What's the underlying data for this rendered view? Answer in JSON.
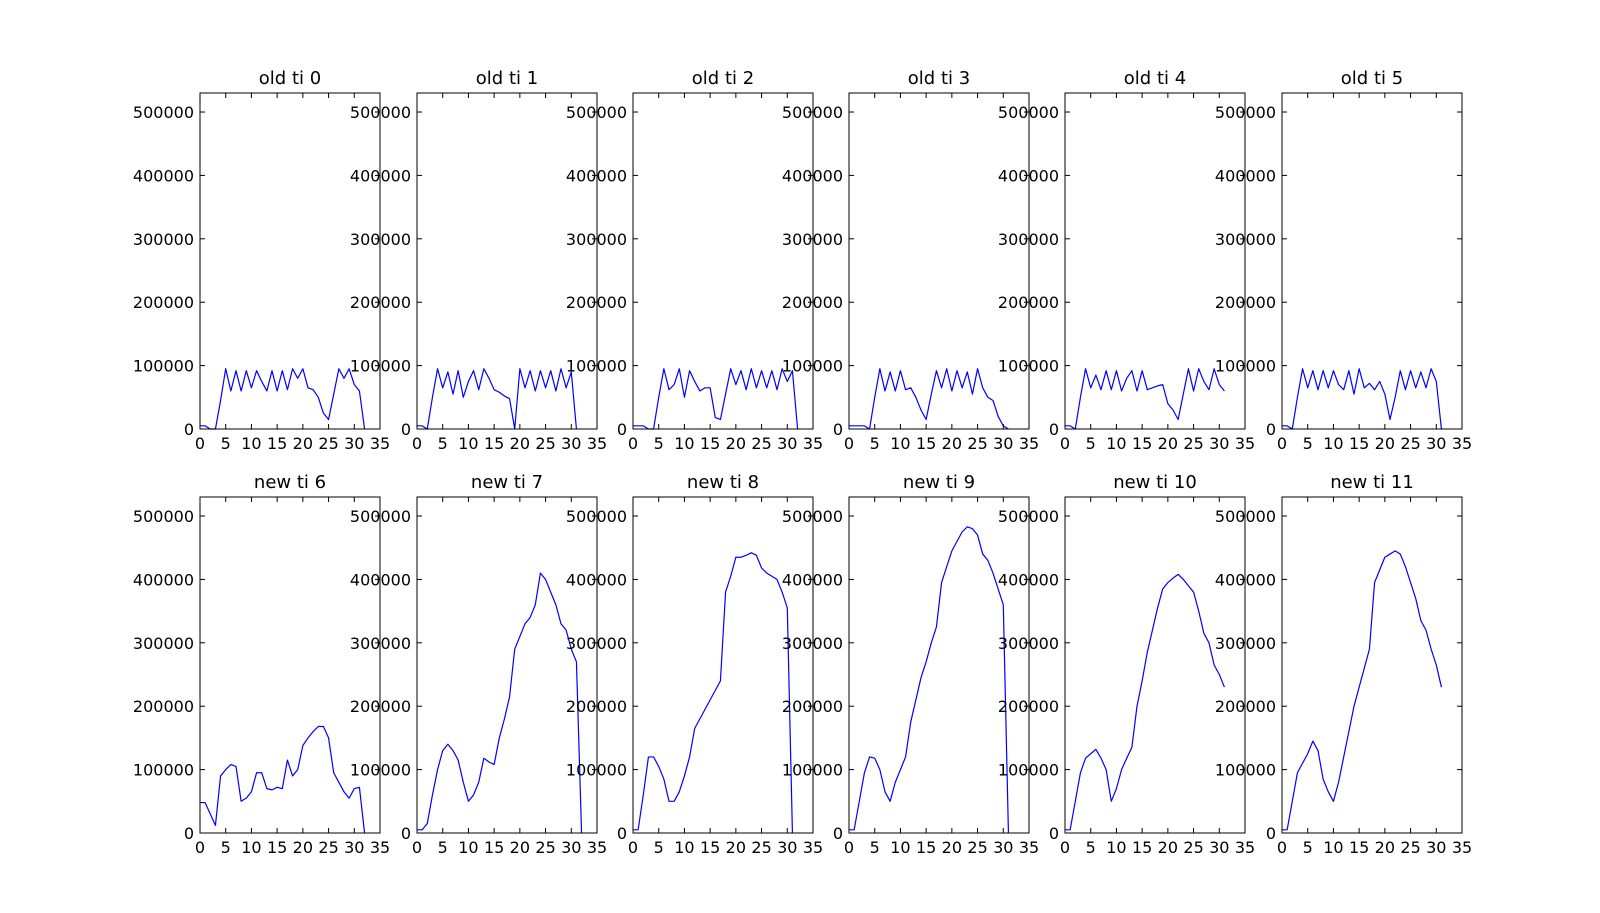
{
  "chart_data": [
    {
      "type": "line",
      "title": "old ti 0",
      "xlim": [
        0,
        35
      ],
      "ylim": [
        0,
        530000
      ],
      "xticks": [
        "0",
        "5",
        "10",
        "15",
        "20",
        "25",
        "30",
        "35"
      ],
      "yticks": [
        "0",
        "100000",
        "200000",
        "300000",
        "400000",
        "500000"
      ],
      "line_color": "#0000ff",
      "x": [
        0,
        1,
        2,
        3,
        4,
        5,
        6,
        7,
        8,
        9,
        10,
        11,
        12,
        13,
        14,
        15,
        16,
        17,
        18,
        19,
        20,
        21,
        22,
        23,
        24,
        25,
        26,
        27,
        28,
        29,
        30,
        31,
        32
      ],
      "values": [
        5000,
        5000,
        0,
        0,
        45000,
        95000,
        60000,
        92000,
        60000,
        92000,
        65000,
        92000,
        75000,
        60000,
        92000,
        60000,
        92000,
        62000,
        95000,
        80000,
        95000,
        65000,
        62000,
        50000,
        25000,
        15000,
        55000,
        95000,
        80000,
        95000,
        70000,
        60000,
        0
      ]
    },
    {
      "type": "line",
      "title": "old ti 1",
      "xlim": [
        0,
        35
      ],
      "ylim": [
        0,
        530000
      ],
      "xticks": [
        "0",
        "5",
        "10",
        "15",
        "20",
        "25",
        "30",
        "35"
      ],
      "yticks": [
        "0",
        "100000",
        "200000",
        "300000",
        "400000",
        "500000"
      ],
      "line_color": "#0000ff",
      "x": [
        0,
        1,
        2,
        3,
        4,
        5,
        6,
        7,
        8,
        9,
        10,
        11,
        12,
        13,
        14,
        15,
        16,
        17,
        18,
        19,
        20,
        21,
        22,
        23,
        24,
        25,
        26,
        27,
        28,
        29,
        30,
        31
      ],
      "values": [
        5000,
        5000,
        0,
        50000,
        95000,
        65000,
        90000,
        55000,
        92000,
        50000,
        75000,
        92000,
        62000,
        95000,
        80000,
        62000,
        58000,
        52000,
        48000,
        0,
        95000,
        65000,
        92000,
        60000,
        92000,
        65000,
        92000,
        60000,
        95000,
        65000,
        90000,
        0
      ]
    },
    {
      "type": "line",
      "title": "old ti 2",
      "xlim": [
        0,
        35
      ],
      "ylim": [
        0,
        530000
      ],
      "xticks": [
        "0",
        "5",
        "10",
        "15",
        "20",
        "25",
        "30",
        "35"
      ],
      "yticks": [
        "0",
        "100000",
        "200000",
        "300000",
        "400000",
        "500000"
      ],
      "line_color": "#0000ff",
      "x": [
        0,
        1,
        2,
        3,
        4,
        5,
        6,
        7,
        8,
        9,
        10,
        11,
        12,
        13,
        14,
        15,
        16,
        17,
        18,
        19,
        20,
        21,
        22,
        23,
        24,
        25,
        26,
        27,
        28,
        29,
        30,
        31,
        32
      ],
      "values": [
        5000,
        5000,
        5000,
        0,
        0,
        50000,
        95000,
        62000,
        70000,
        95000,
        50000,
        92000,
        75000,
        60000,
        65000,
        65000,
        18000,
        15000,
        55000,
        95000,
        70000,
        92000,
        62000,
        95000,
        65000,
        92000,
        65000,
        92000,
        62000,
        95000,
        75000,
        92000,
        0
      ]
    },
    {
      "type": "line",
      "title": "old ti 3",
      "xlim": [
        0,
        35
      ],
      "ylim": [
        0,
        530000
      ],
      "xticks": [
        "0",
        "5",
        "10",
        "15",
        "20",
        "25",
        "30",
        "35"
      ],
      "yticks": [
        "0",
        "100000",
        "200000",
        "300000",
        "400000",
        "500000"
      ],
      "line_color": "#0000ff",
      "x": [
        0,
        1,
        2,
        3,
        4,
        5,
        6,
        7,
        8,
        9,
        10,
        11,
        12,
        13,
        14,
        15,
        16,
        17,
        18,
        19,
        20,
        21,
        22,
        23,
        24,
        25,
        26,
        27,
        28,
        29,
        30,
        31
      ],
      "values": [
        5000,
        5000,
        5000,
        5000,
        0,
        50000,
        95000,
        60000,
        90000,
        60000,
        92000,
        62000,
        65000,
        50000,
        30000,
        15000,
        55000,
        92000,
        65000,
        95000,
        60000,
        92000,
        65000,
        90000,
        55000,
        95000,
        65000,
        50000,
        45000,
        20000,
        5000,
        0
      ]
    },
    {
      "type": "line",
      "title": "old ti 4",
      "xlim": [
        0,
        35
      ],
      "ylim": [
        0,
        530000
      ],
      "xticks": [
        "0",
        "5",
        "10",
        "15",
        "20",
        "25",
        "30",
        "35"
      ],
      "yticks": [
        "0",
        "100000",
        "200000",
        "300000",
        "400000",
        "500000"
      ],
      "line_color": "#0000ff",
      "x": [
        0,
        1,
        2,
        3,
        4,
        5,
        6,
        7,
        8,
        9,
        10,
        11,
        12,
        13,
        14,
        15,
        16,
        17,
        18,
        19,
        20,
        21,
        22,
        23,
        24,
        25,
        26,
        27,
        28,
        29,
        30,
        31
      ],
      "values": [
        5000,
        5000,
        0,
        50000,
        95000,
        65000,
        85000,
        62000,
        92000,
        62000,
        92000,
        60000,
        80000,
        92000,
        60000,
        92000,
        62000,
        65000,
        68000,
        70000,
        40000,
        30000,
        15000,
        55000,
        95000,
        60000,
        95000,
        75000,
        62000,
        95000,
        70000,
        60000
      ]
    },
    {
      "type": "line",
      "title": "old ti 5",
      "xlim": [
        0,
        35
      ],
      "ylim": [
        0,
        530000
      ],
      "xticks": [
        "0",
        "5",
        "10",
        "15",
        "20",
        "25",
        "30",
        "35"
      ],
      "yticks": [
        "0",
        "100000",
        "200000",
        "300000",
        "400000",
        "500000"
      ],
      "line_color": "#0000ff",
      "x": [
        0,
        1,
        2,
        3,
        4,
        5,
        6,
        7,
        8,
        9,
        10,
        11,
        12,
        13,
        14,
        15,
        16,
        17,
        18,
        19,
        20,
        21,
        22,
        23,
        24,
        25,
        26,
        27,
        28,
        29,
        30,
        31
      ],
      "values": [
        5000,
        5000,
        0,
        50000,
        95000,
        65000,
        92000,
        62000,
        92000,
        65000,
        92000,
        70000,
        62000,
        92000,
        55000,
        95000,
        65000,
        72000,
        62000,
        75000,
        55000,
        15000,
        50000,
        92000,
        62000,
        92000,
        65000,
        90000,
        65000,
        95000,
        75000,
        0
      ]
    },
    {
      "type": "line",
      "title": "new ti 6",
      "xlim": [
        0,
        35
      ],
      "ylim": [
        0,
        530000
      ],
      "xticks": [
        "0",
        "5",
        "10",
        "15",
        "20",
        "25",
        "30",
        "35"
      ],
      "yticks": [
        "0",
        "100000",
        "200000",
        "300000",
        "400000",
        "500000"
      ],
      "line_color": "#0000ff",
      "x": [
        0,
        1,
        2,
        3,
        4,
        5,
        6,
        7,
        8,
        9,
        10,
        11,
        12,
        13,
        14,
        15,
        16,
        17,
        18,
        19,
        20,
        21,
        22,
        23,
        24,
        25,
        26,
        27,
        28,
        29,
        30,
        31,
        32
      ],
      "values": [
        48000,
        48000,
        30000,
        12000,
        90000,
        100000,
        108000,
        105000,
        50000,
        55000,
        65000,
        95000,
        95000,
        70000,
        68000,
        72000,
        70000,
        115000,
        90000,
        100000,
        138000,
        150000,
        160000,
        168000,
        168000,
        150000,
        95000,
        80000,
        65000,
        55000,
        70000,
        72000,
        0
      ]
    },
    {
      "type": "line",
      "title": "new ti 7",
      "xlim": [
        0,
        35
      ],
      "ylim": [
        0,
        530000
      ],
      "xticks": [
        "0",
        "5",
        "10",
        "15",
        "20",
        "25",
        "30",
        "35"
      ],
      "yticks": [
        "0",
        "100000",
        "200000",
        "300000",
        "400000",
        "500000"
      ],
      "line_color": "#0000ff",
      "x": [
        0,
        1,
        2,
        3,
        4,
        5,
        6,
        7,
        8,
        9,
        10,
        11,
        12,
        13,
        14,
        15,
        16,
        17,
        18,
        19,
        20,
        21,
        22,
        23,
        24,
        25,
        26,
        27,
        28,
        29,
        30,
        31,
        32
      ],
      "values": [
        5000,
        5000,
        15000,
        60000,
        100000,
        130000,
        140000,
        130000,
        115000,
        80000,
        50000,
        60000,
        80000,
        118000,
        112000,
        108000,
        150000,
        180000,
        215000,
        290000,
        310000,
        330000,
        340000,
        360000,
        410000,
        400000,
        380000,
        360000,
        330000,
        320000,
        290000,
        270000,
        0
      ]
    },
    {
      "type": "line",
      "title": "new ti 8",
      "xlim": [
        0,
        35
      ],
      "ylim": [
        0,
        530000
      ],
      "xticks": [
        "0",
        "5",
        "10",
        "15",
        "20",
        "25",
        "30",
        "35"
      ],
      "yticks": [
        "0",
        "100000",
        "200000",
        "300000",
        "400000",
        "500000"
      ],
      "line_color": "#0000ff",
      "x": [
        0,
        1,
        2,
        3,
        4,
        5,
        6,
        7,
        8,
        9,
        10,
        11,
        12,
        13,
        14,
        15,
        16,
        17,
        18,
        19,
        20,
        21,
        22,
        23,
        24,
        25,
        26,
        27,
        28,
        29,
        30,
        31
      ],
      "values": [
        5000,
        5000,
        60000,
        120000,
        120000,
        105000,
        85000,
        50000,
        50000,
        65000,
        90000,
        120000,
        165000,
        180000,
        195000,
        210000,
        225000,
        240000,
        380000,
        405000,
        435000,
        435000,
        438000,
        442000,
        438000,
        418000,
        410000,
        405000,
        400000,
        380000,
        355000,
        0
      ]
    },
    {
      "type": "line",
      "title": "new ti 9",
      "xlim": [
        0,
        35
      ],
      "ylim": [
        0,
        530000
      ],
      "xticks": [
        "0",
        "5",
        "10",
        "15",
        "20",
        "25",
        "30",
        "35"
      ],
      "yticks": [
        "0",
        "100000",
        "200000",
        "300000",
        "400000",
        "500000"
      ],
      "line_color": "#0000ff",
      "x": [
        0,
        1,
        2,
        3,
        4,
        5,
        6,
        7,
        8,
        9,
        10,
        11,
        12,
        13,
        14,
        15,
        16,
        17,
        18,
        19,
        20,
        21,
        22,
        23,
        24,
        25,
        26,
        27,
        28,
        29,
        30,
        31
      ],
      "values": [
        5000,
        5000,
        50000,
        95000,
        120000,
        118000,
        100000,
        65000,
        50000,
        80000,
        100000,
        120000,
        175000,
        210000,
        245000,
        270000,
        300000,
        325000,
        395000,
        420000,
        445000,
        460000,
        475000,
        483000,
        480000,
        470000,
        440000,
        430000,
        410000,
        385000,
        360000,
        0
      ]
    },
    {
      "type": "line",
      "title": "new ti 10",
      "xlim": [
        0,
        35
      ],
      "ylim": [
        0,
        530000
      ],
      "xticks": [
        "0",
        "5",
        "10",
        "15",
        "20",
        "25",
        "30",
        "35"
      ],
      "yticks": [
        "0",
        "100000",
        "200000",
        "300000",
        "400000",
        "500000"
      ],
      "line_color": "#0000ff",
      "x": [
        0,
        1,
        2,
        3,
        4,
        5,
        6,
        7,
        8,
        9,
        10,
        11,
        12,
        13,
        14,
        15,
        16,
        17,
        18,
        19,
        20,
        21,
        22,
        23,
        24,
        25,
        26,
        27,
        28,
        29,
        30,
        31
      ],
      "values": [
        5000,
        5000,
        50000,
        95000,
        118000,
        125000,
        132000,
        118000,
        100000,
        50000,
        70000,
        100000,
        118000,
        135000,
        200000,
        240000,
        285000,
        320000,
        355000,
        385000,
        395000,
        402000,
        408000,
        400000,
        390000,
        380000,
        350000,
        315000,
        300000,
        265000,
        250000,
        230000
      ]
    },
    {
      "type": "line",
      "title": "new ti 11",
      "xlim": [
        0,
        35
      ],
      "ylim": [
        0,
        530000
      ],
      "xticks": [
        "0",
        "5",
        "10",
        "15",
        "20",
        "25",
        "30",
        "35"
      ],
      "yticks": [
        "0",
        "100000",
        "200000",
        "300000",
        "400000",
        "500000"
      ],
      "line_color": "#0000ff",
      "x": [
        0,
        1,
        2,
        3,
        4,
        5,
        6,
        7,
        8,
        9,
        10,
        11,
        12,
        13,
        14,
        15,
        16,
        17,
        18,
        19,
        20,
        21,
        22,
        23,
        24,
        25,
        26,
        27,
        28,
        29,
        30,
        31
      ],
      "values": [
        5000,
        5000,
        50000,
        95000,
        110000,
        125000,
        145000,
        130000,
        85000,
        65000,
        50000,
        80000,
        120000,
        160000,
        200000,
        230000,
        260000,
        290000,
        395000,
        415000,
        435000,
        440000,
        445000,
        440000,
        420000,
        395000,
        370000,
        335000,
        320000,
        290000,
        265000,
        230000
      ]
    }
  ]
}
